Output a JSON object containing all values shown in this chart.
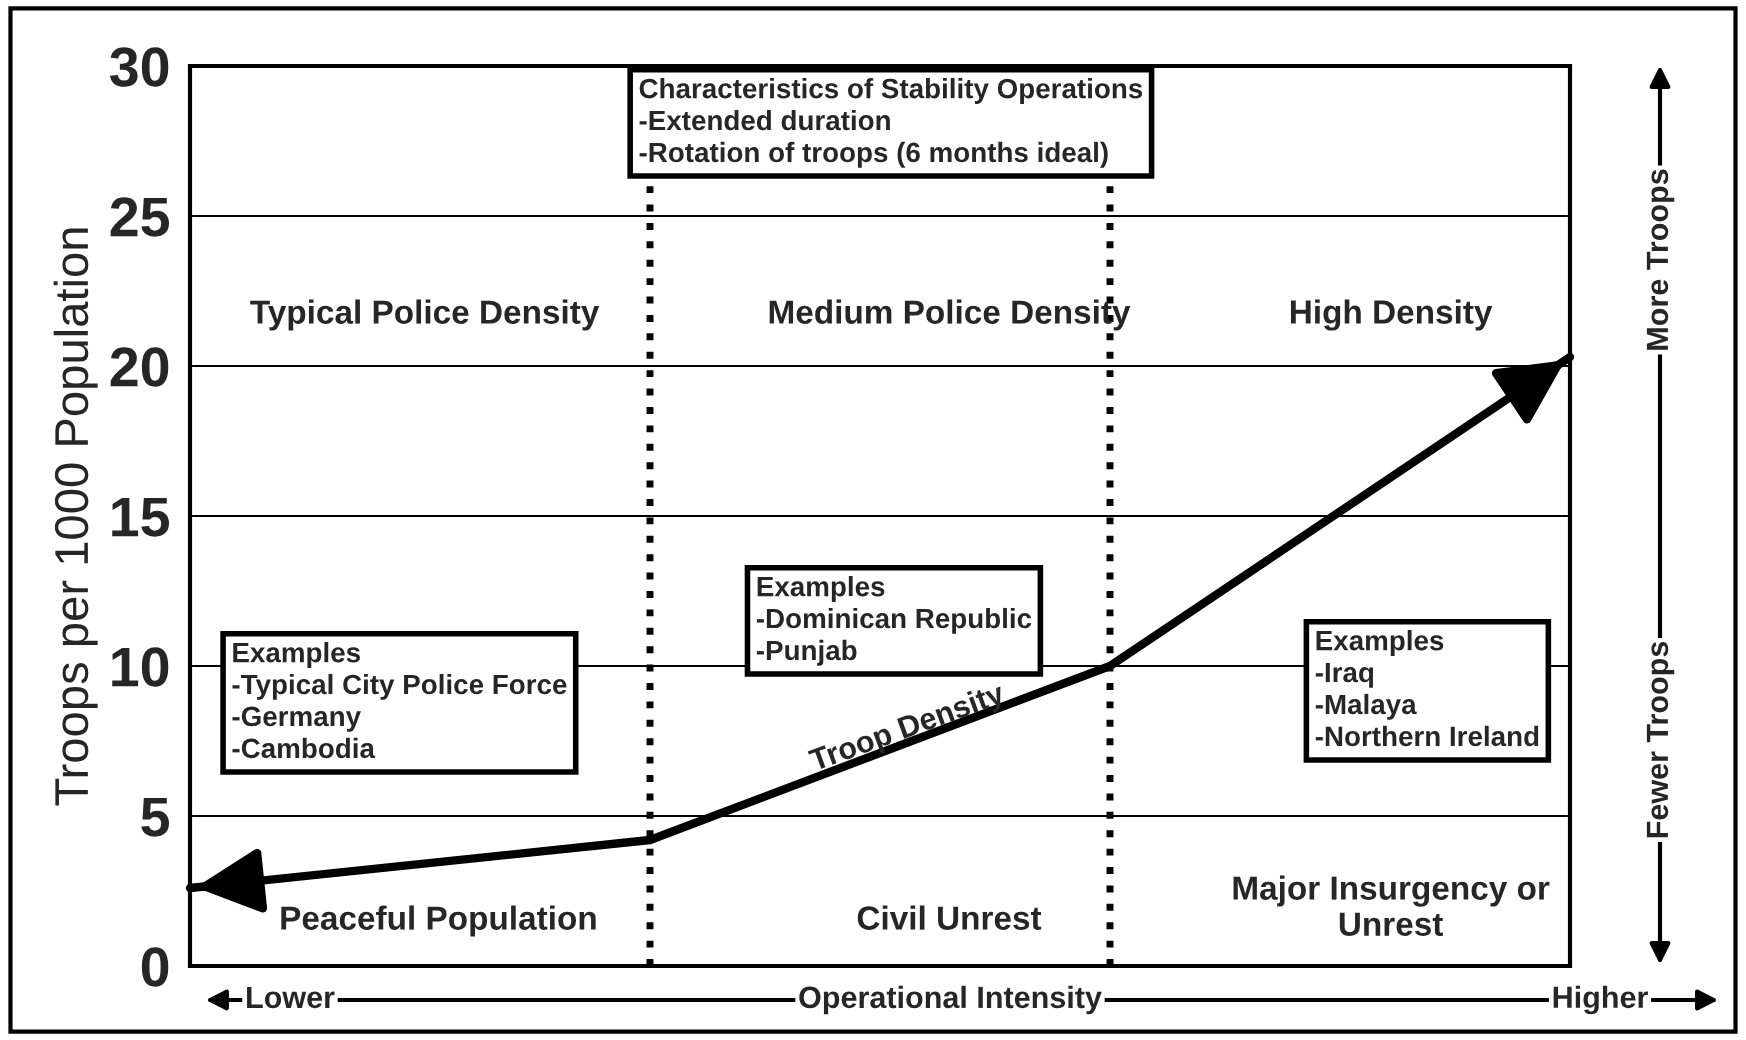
{
  "chart_data": {
    "type": "line",
    "ylabel": "Troops per 1000 Population",
    "xlabel": "Operational Intensity",
    "categories": [
      null,
      null,
      null,
      null
    ],
    "ylim": [
      0,
      30
    ],
    "yticks": [
      0,
      5,
      10,
      15,
      20,
      25,
      30
    ],
    "tick_labels": "y",
    "grid": "y",
    "series": [
      {
        "color": "#000000",
        "values": [
          2.6,
          4.2,
          10,
          20.3
        ]
      }
    ],
    "annotations": [
      "Typical Police Density",
      "Medium Police Density",
      "High Density",
      "Characteristics of Stability Operations\n-Extended duration\n-Rotation of troops (6 months ideal)",
      "Examples\n-Typical City Police Force\n-Germany\n-Cambodia",
      "Examples\n-Dominican Republic\n-Punjab",
      "Examples\n-Iraq\n-Malaya\n-Northern Ireland",
      "Troop Density",
      "Peaceful Population",
      "Civil Unrest",
      "Major Insurgency or\nUnrest",
      "Lower",
      "Higher",
      "Fewer Troops",
      "More Troops"
    ]
  }
}
